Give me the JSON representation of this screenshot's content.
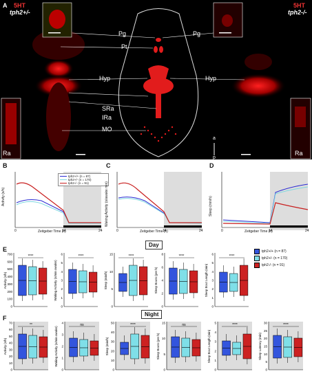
{
  "panelA": {
    "letter": "A",
    "left_title_1": "5HT",
    "left_title_2": "tph2+/-",
    "right_title_1": "5HT",
    "right_title_2": "tph2-/-",
    "labels": [
      "Pg",
      "Pt",
      "Hyp",
      "SRa",
      "IRa",
      "MO"
    ],
    "right_labels": [
      "Pg",
      "Hyp"
    ],
    "inset_label_left": "Ra",
    "inset_label_right": "Ra",
    "compass_a": "a",
    "compass_p": "p"
  },
  "panelB": {
    "letter": "B",
    "ylabel": "Activity (s/h)",
    "xlabel": "Zeitgeber Time (h)",
    "yticks": [
      "0",
      "100",
      "200",
      "300",
      "400",
      "500"
    ],
    "xticks": [
      "0",
      "14",
      "24"
    ]
  },
  "panelC": {
    "letter": "C",
    "ylabel": "Waking Activity (s/awake min)",
    "xlabel": "Zeitgeber Time (h)",
    "yticks": [
      "0",
      "1",
      "2",
      "3",
      "4",
      "5"
    ],
    "xticks": [
      "0",
      "14",
      "24"
    ]
  },
  "panelD": {
    "letter": "D",
    "ylabel": "Sleep (min/h)",
    "xlabel": "Zeitgeber Time (h)",
    "yticks": [
      "0",
      "5",
      "10",
      "15",
      "20",
      "25",
      "30",
      "35"
    ],
    "xticks": [
      "0",
      "14",
      "24"
    ]
  },
  "legendB": [
    {
      "label": "tph2+/+ (n = 87)",
      "color": "#2a2ad4"
    },
    {
      "label": "tph2+/- (n = 170)",
      "color": "#7fd8e0"
    },
    {
      "label": "tph2-/- (n = 91)",
      "color": "#c81e1e"
    }
  ],
  "panelE": {
    "letter": "E",
    "section": "Day",
    "plots": [
      {
        "ylabel": "Activity (s/h)",
        "yticks": [
          "0",
          "100",
          "200",
          "300",
          "400",
          "500",
          "600",
          "700"
        ],
        "sig": "****"
      },
      {
        "ylabel": "Waking Activity (s/min awake)",
        "yticks": [
          "0",
          "1",
          "2",
          "3",
          "4",
          "5",
          "6"
        ],
        "sig": "****"
      },
      {
        "ylabel": "Sleep (min/h)",
        "yticks": [
          "0",
          "5",
          "10",
          "15"
        ],
        "sig": "****"
      },
      {
        "ylabel": "Sleep Bouts (per h)",
        "yticks": [
          "0",
          "2",
          "4",
          "6",
          "8"
        ],
        "sig": "****"
      },
      {
        "ylabel": "Sleep Bout Length (min)",
        "yticks": [
          "0",
          "1",
          "2",
          "3",
          "4",
          "5",
          "6"
        ],
        "sig": "****"
      }
    ],
    "legend": [
      {
        "label": "tph2+/+ (n = 87)",
        "color": "#3355dd"
      },
      {
        "label": "tph2+/- (n = 170)",
        "color": "#7fdfe8"
      },
      {
        "label": "tph2-/- (n = 91)",
        "color": "#cc2222"
      }
    ]
  },
  "panelF": {
    "letter": "F",
    "section": "Night",
    "plots": [
      {
        "ylabel": "Activity (s/h)",
        "yticks": [
          "0",
          "10",
          "20",
          "30",
          "40",
          "50",
          "60",
          "70"
        ],
        "sig": "**"
      },
      {
        "ylabel": "Waking Activity (s/min awake)",
        "yticks": [
          "0",
          "1",
          "2",
          "3",
          "4"
        ],
        "sig": "ns"
      },
      {
        "ylabel": "Sleep (min/h)",
        "yticks": [
          "0",
          "10",
          "20",
          "30",
          "40",
          "50"
        ],
        "sig": "****"
      },
      {
        "ylabel": "Sleep Bouts (per h)",
        "yticks": [
          "0",
          "5",
          "10",
          "15"
        ],
        "sig": "ns"
      },
      {
        "ylabel": "Sleep Bout Length (min)",
        "yticks": [
          "0",
          "1",
          "2",
          "3",
          "4",
          "5"
        ],
        "sig": "****"
      },
      {
        "ylabel": "Sleep Latency (min)",
        "yticks": [
          "0",
          "5",
          "10",
          "15",
          "20",
          "25",
          "30"
        ],
        "sig": "****"
      }
    ]
  }
}
